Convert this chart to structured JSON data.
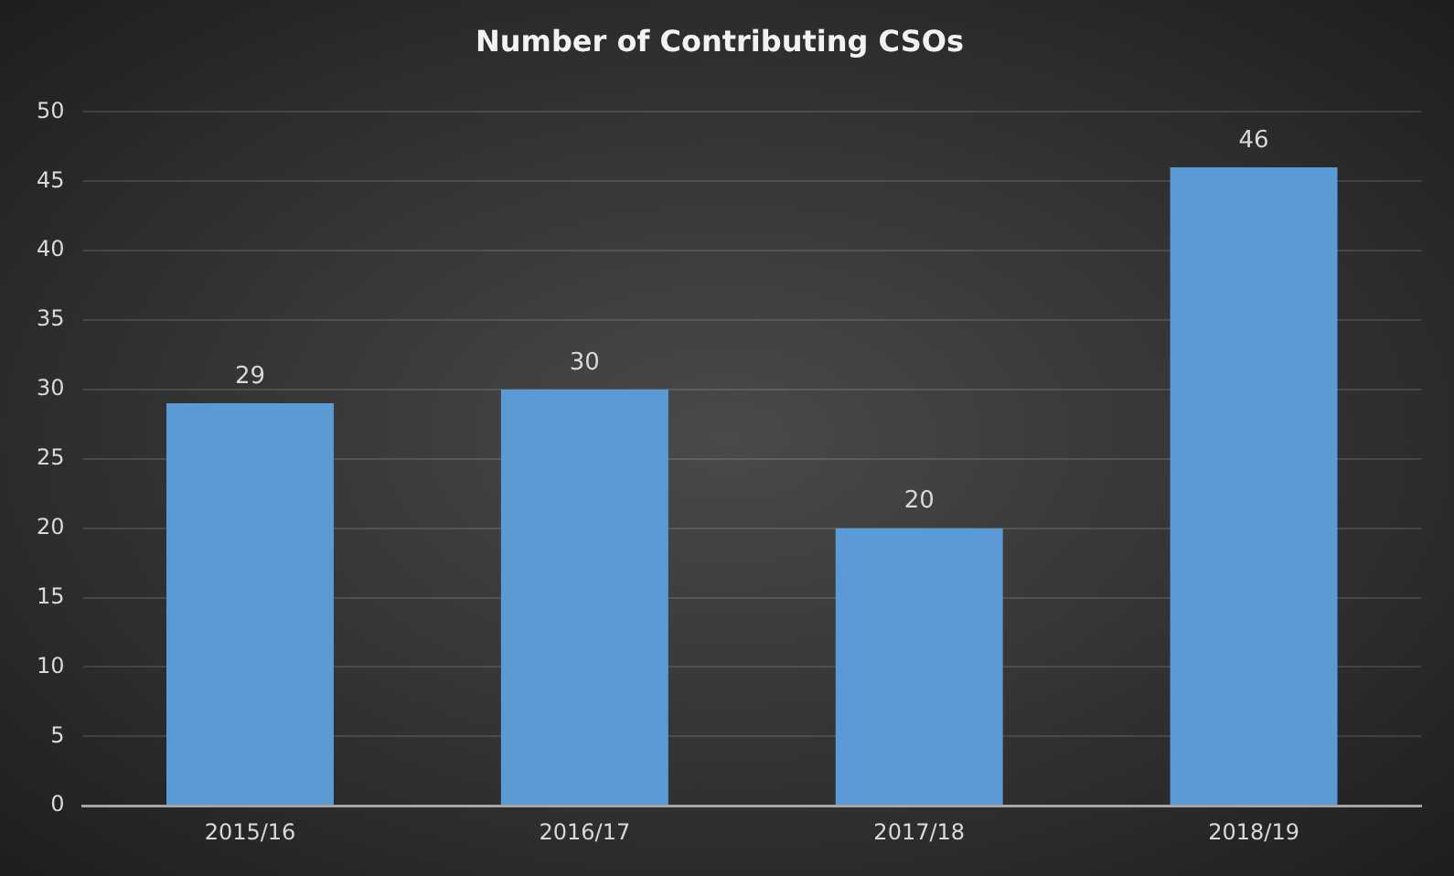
{
  "chart_data": {
    "type": "bar",
    "title": "Number of Contributing CSOs",
    "categories": [
      "2015/16",
      "2016/17",
      "2017/18",
      "2018/19"
    ],
    "values": [
      29,
      30,
      20,
      46
    ],
    "color": "#5b9bd5",
    "ylim": [
      0,
      50
    ],
    "yticks": [
      0,
      5,
      10,
      15,
      20,
      25,
      30,
      35,
      40,
      45,
      50
    ],
    "grid": "y",
    "data_labels": true,
    "legend": false
  }
}
